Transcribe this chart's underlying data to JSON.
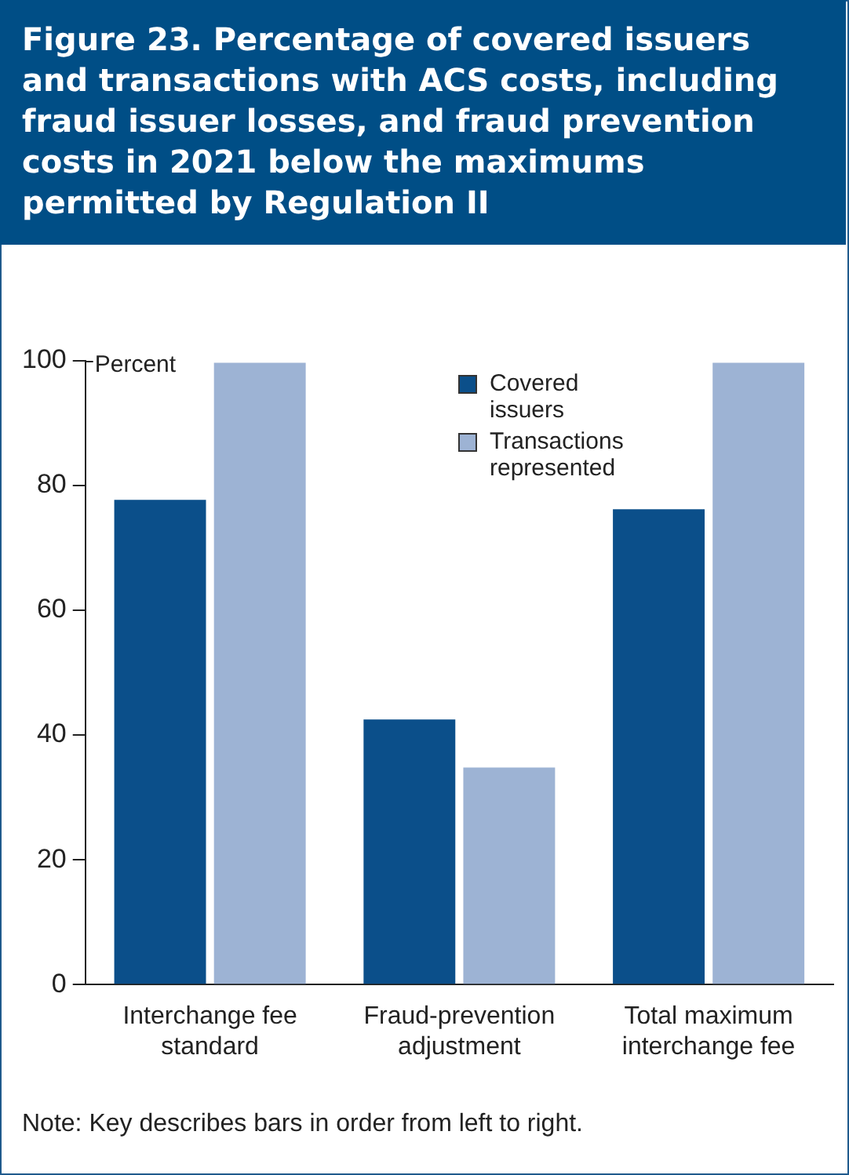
{
  "chart_data": {
    "type": "bar",
    "title": "Figure 23. Percentage of covered issuers and transactions with ACS costs, including fraud issuer losses, and fraud prevention costs in 2021 below the maximums permitted by Regulation II",
    "ylabel": "Percent",
    "categories": [
      "Interchange fee standard",
      "Fraud-prevention adjustment",
      "Total maximum interchange fee"
    ],
    "series": [
      {
        "name": "Covered issuers",
        "color": "#0b4f8a",
        "values": [
          77.7,
          42.5,
          76.2
        ]
      },
      {
        "name": "Transactions represented",
        "color": "#9db3d4",
        "values": [
          99.7,
          34.8,
          99.7
        ]
      }
    ],
    "ylim": [
      0,
      100
    ],
    "yticks": [
      0,
      20,
      40,
      60,
      80,
      100
    ],
    "grid": false,
    "legend": "top right",
    "annotations": [
      "Note: Key describes bars in order from left to right."
    ]
  }
}
